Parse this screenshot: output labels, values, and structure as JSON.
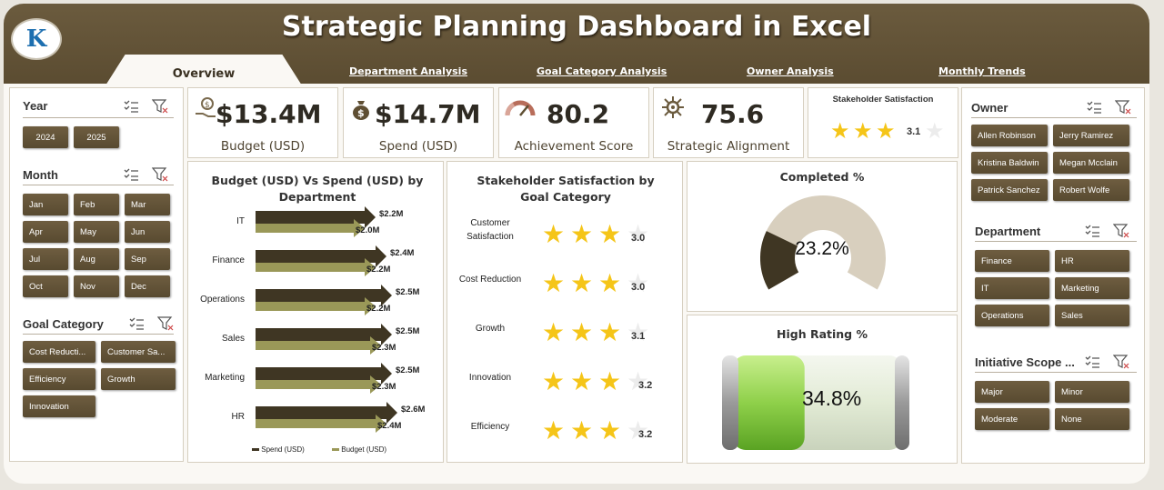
{
  "header": {
    "title": "Strategic Planning Dashboard in Excel",
    "tabs": [
      {
        "label": "Overview",
        "active": true
      },
      {
        "label": "Department Analysis"
      },
      {
        "label": "Goal Category Analysis"
      },
      {
        "label": "Owner Analysis"
      },
      {
        "label": "Monthly Trends"
      }
    ]
  },
  "left_slicers": {
    "year": {
      "title": "Year",
      "items": [
        "2024",
        "2025"
      ]
    },
    "month": {
      "title": "Month",
      "items": [
        "Jan",
        "Feb",
        "Mar",
        "Apr",
        "May",
        "Jun",
        "Jul",
        "Aug",
        "Sep",
        "Oct",
        "Nov",
        "Dec"
      ]
    },
    "goal_category": {
      "title": "Goal Category",
      "items": [
        "Cost Reducti...",
        "Customer Sa...",
        "Efficiency",
        "Growth",
        "Innovation"
      ]
    }
  },
  "right_slicers": {
    "owner": {
      "title": "Owner",
      "items": [
        "Allen Robinson",
        "Jerry Ramirez",
        "Kristina Baldwin",
        "Megan Mcclain",
        "Patrick Sanchez",
        "Robert Wolfe"
      ]
    },
    "department": {
      "title": "Department",
      "items": [
        "Finance",
        "HR",
        "IT",
        "Marketing",
        "Operations",
        "Sales"
      ]
    },
    "initiative_scope": {
      "title": "Initiative Scope ...",
      "items": [
        "Major",
        "Minor",
        "Moderate",
        "None"
      ]
    }
  },
  "kpis": {
    "budget": {
      "value": "$13.4M",
      "label": "Budget (USD)",
      "icon": "money-bag-hand-icon"
    },
    "spend": {
      "value": "$14.7M",
      "label": "Spend (USD)",
      "icon": "dollar-bag-icon"
    },
    "achievement": {
      "value": "80.2",
      "label": "Achievement Score",
      "icon": "gauge-icon"
    },
    "alignment": {
      "value": "75.6",
      "label": "Strategic Alignment",
      "icon": "target-gear-icon"
    },
    "satisfaction": {
      "title": "Stakeholder Satisfaction",
      "value": "3.1",
      "rating": 3.1
    }
  },
  "colors": {
    "spend": "#3f3623",
    "budget": "#9a9858",
    "brown": "#5f4f33",
    "star": "#f5c518",
    "donut_fill": "#3f3623",
    "donut_rest": "#d8cfbe",
    "battery_fill": "#8fd04a"
  },
  "chart_data": [
    {
      "type": "bar",
      "title": "Budget (USD) Vs Spend (USD) by Department",
      "categories": [
        "IT",
        "Finance",
        "Operations",
        "Sales",
        "Marketing",
        "HR"
      ],
      "series": [
        {
          "name": "Spend (USD)",
          "values": [
            2.2,
            2.4,
            2.5,
            2.5,
            2.5,
            2.6
          ],
          "labels": [
            "$2.2M",
            "$2.4M",
            "$2.5M",
            "$2.5M",
            "$2.5M",
            "$2.6M"
          ]
        },
        {
          "name": "Budget (USD)",
          "values": [
            2.0,
            2.2,
            2.2,
            2.3,
            2.3,
            2.4
          ],
          "labels": [
            "$2.0M",
            "$2.2M",
            "$2.2M",
            "$2.3M",
            "$2.3M",
            "$2.4M"
          ]
        }
      ],
      "legend": "bottom"
    },
    {
      "type": "table",
      "title": "Stakeholder Satisfaction by Goal Category",
      "categories": [
        "Customer Satisfaction",
        "Cost Reduction",
        "Growth",
        "Innovation",
        "Efficiency"
      ],
      "values": [
        3.0,
        3.0,
        3.1,
        3.2,
        3.2
      ],
      "labels": [
        "3.0",
        "3.0",
        "3.1",
        "3.2",
        "3.2"
      ],
      "max": 4
    },
    {
      "type": "pie",
      "title": "Completed %",
      "value": 23.2,
      "label": "23.2%"
    },
    {
      "type": "bar",
      "title": "High Rating %",
      "value": 34.8,
      "label": "34.8%"
    }
  ]
}
